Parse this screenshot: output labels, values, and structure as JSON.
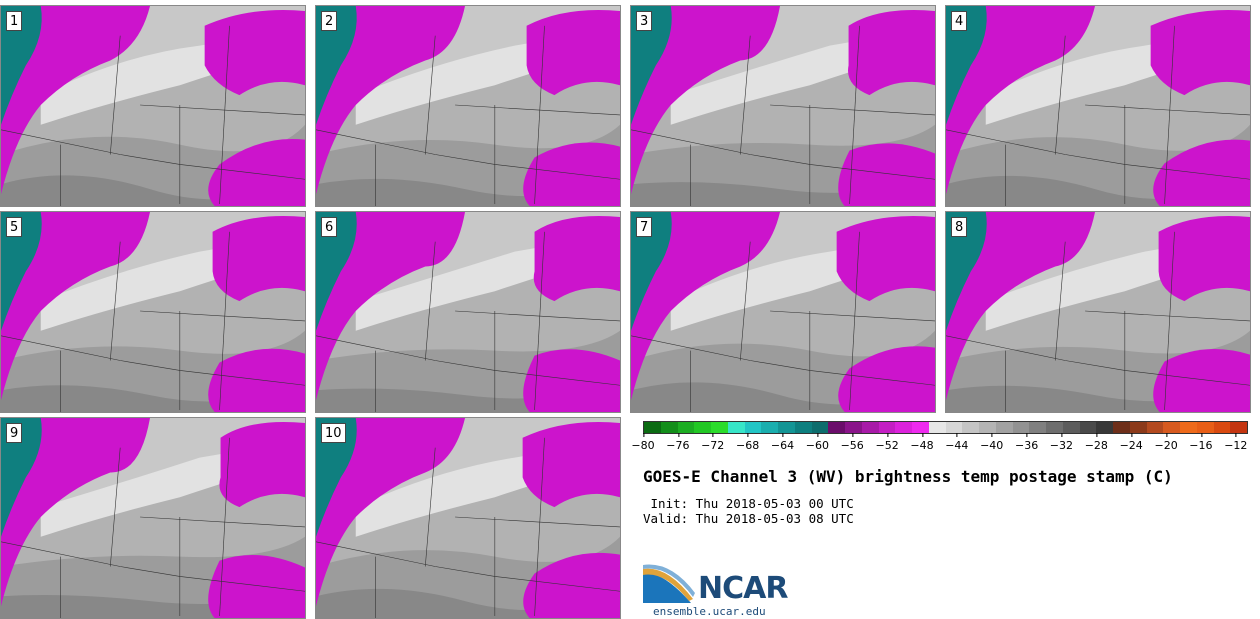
{
  "panels": [
    {
      "label": "1"
    },
    {
      "label": "2"
    },
    {
      "label": "3"
    },
    {
      "label": "4"
    },
    {
      "label": "5"
    },
    {
      "label": "6"
    },
    {
      "label": "7"
    },
    {
      "label": "8"
    },
    {
      "label": "9"
    },
    {
      "label": "10"
    }
  ],
  "colorbar": {
    "colors": [
      "#0b6b12",
      "#138e1a",
      "#1cad22",
      "#22c824",
      "#2bdc2b",
      "#37e5c8",
      "#22c5c5",
      "#1aaeae",
      "#139595",
      "#0d7f7f",
      "#0d6d6d",
      "#6b0d6b",
      "#8a148a",
      "#a81aa8",
      "#c41ec4",
      "#dc22dc",
      "#ee2aee",
      "#e6e6e6",
      "#d6d6d6",
      "#c4c4c4",
      "#b4b4b4",
      "#a2a2a2",
      "#929292",
      "#808080",
      "#6e6e6e",
      "#5c5c5c",
      "#4a4a4a",
      "#383838",
      "#6e2f1a",
      "#8c3a1a",
      "#b34a1f",
      "#d75a1f",
      "#ee6a1a",
      "#e85e16",
      "#d94a10",
      "#c43510"
    ],
    "ticks": [
      "−80",
      "−76",
      "−72",
      "−68",
      "−64",
      "−60",
      "−56",
      "−52",
      "−48",
      "−44",
      "−40",
      "−36",
      "−32",
      "−28",
      "−24",
      "−20",
      "−16",
      "−12"
    ]
  },
  "title": "GOES-E Channel 3 (WV) brightness temp postage stamp (C)",
  "init_line": " Init: Thu 2018-05-03 00 UTC",
  "valid_line": "Valid: Thu 2018-05-03 08 UTC",
  "logo": {
    "name": "NCAR",
    "url_text": "ensemble.ucar.edu"
  }
}
